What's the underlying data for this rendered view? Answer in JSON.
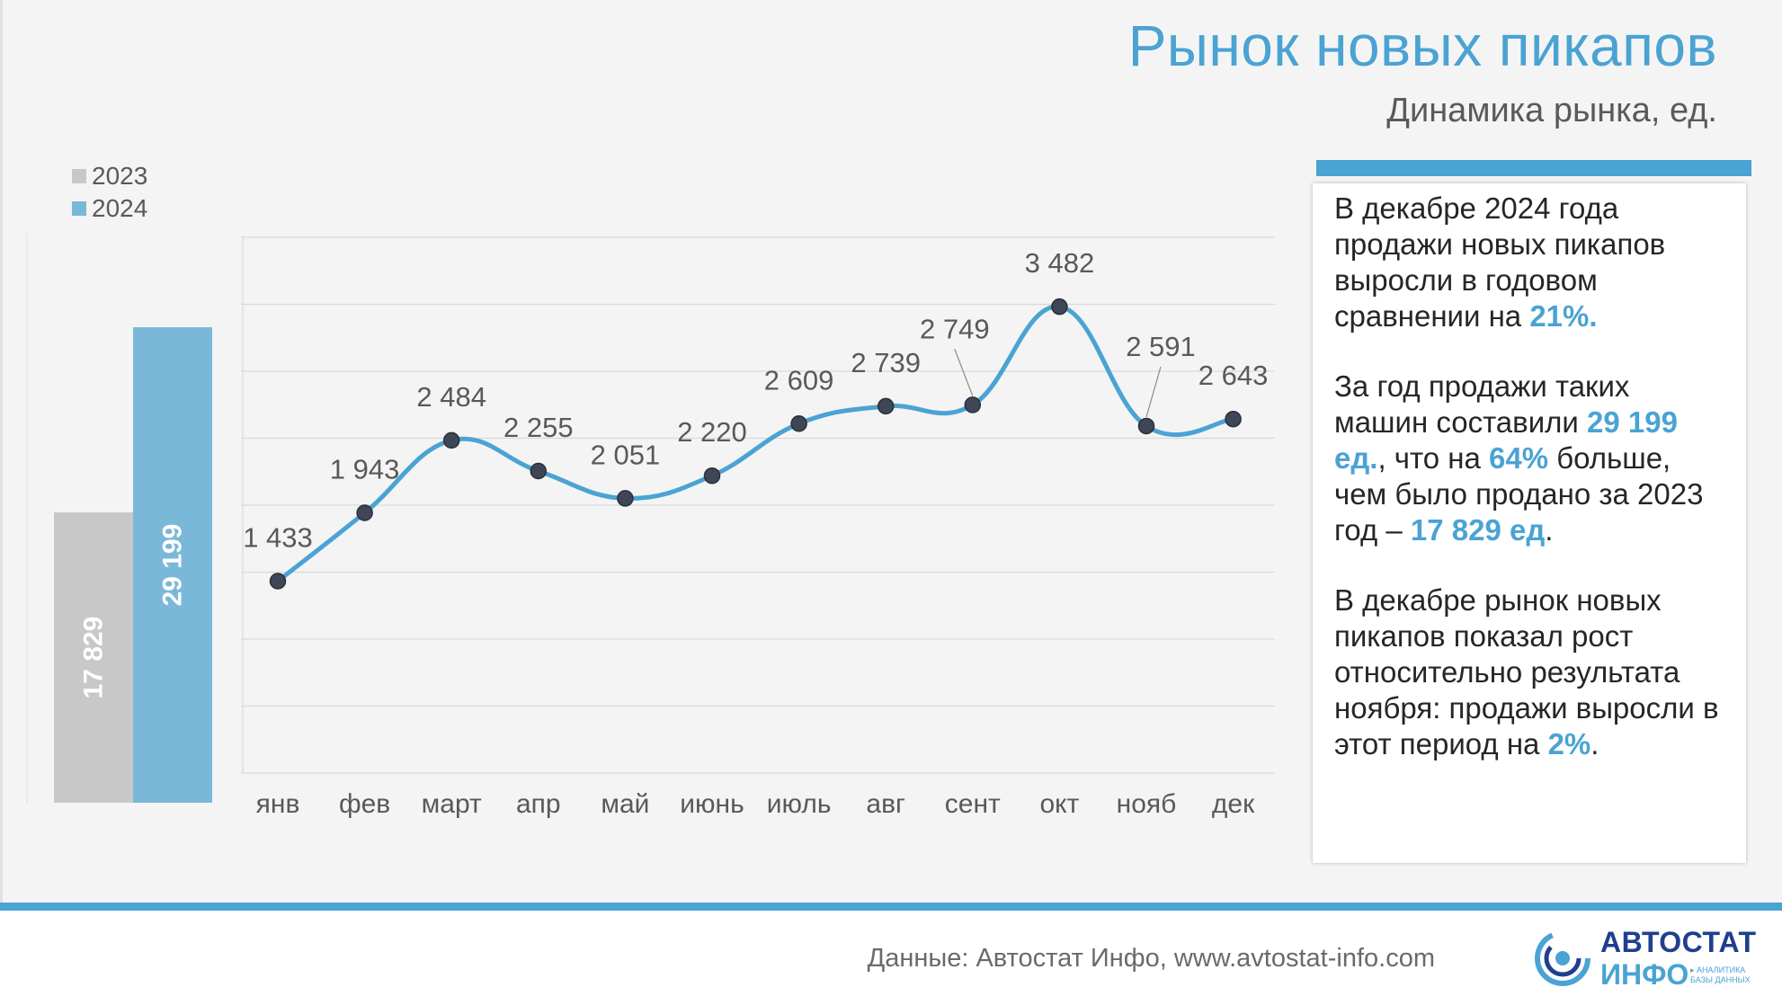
{
  "header": {
    "title": "Рынок новых пикапов",
    "subtitle": "Динамика рынка, ед."
  },
  "chart_data": [
    {
      "type": "bar",
      "categories": [
        "2023",
        "2024"
      ],
      "values": [
        17829,
        29199
      ],
      "value_labels": [
        "17 829",
        "29 199"
      ],
      "colors": [
        "#c8c8c8",
        "#7ab8d9"
      ],
      "legend": [
        "2023",
        "2024"
      ],
      "legend_position": "top-left"
    },
    {
      "type": "line",
      "categories": [
        "янв",
        "фев",
        "март",
        "апр",
        "май",
        "июнь",
        "июль",
        "авг",
        "сент",
        "окт",
        "нояб",
        "дек"
      ],
      "values": [
        1433,
        1943,
        2484,
        2255,
        2051,
        2220,
        2609,
        2739,
        2749,
        3482,
        2591,
        2643
      ],
      "value_labels": [
        "1 433",
        "1 943",
        "2 484",
        "2 255",
        "2 051",
        "2 220",
        "2 609",
        "2 739",
        "2 749",
        "3 482",
        "2 591",
        "2 643"
      ],
      "ylim": [
        0,
        4000
      ],
      "grid": true,
      "smooth": true,
      "line_color": "#4aa3d3",
      "marker_color": "#3f4656"
    }
  ],
  "infobox": {
    "p1": {
      "t1": "В декабре 2024 года продажи новых пикапов выросли в годовом сравнении на ",
      "h1": "21%",
      "t2": "."
    },
    "p2": {
      "t1": "За год продажи таких машин составили ",
      "h1": "29 199 ед.",
      "t2": ", что на ",
      "h2": "64%",
      "t3": " больше, чем было продано за 2023 год – ",
      "h3": "17 829 ед",
      "t4": "."
    },
    "p3": {
      "t1": "В декабре рынок новых пикапов показал рост относительно результата ноября: продажи выросли в этот период на ",
      "h1": "2%",
      "t2": "."
    }
  },
  "footer": {
    "source": "Данные: Автостат Инфо, www.avtostat-info.com",
    "logo_word1": "АВТОСТАТ",
    "logo_word2": "ИНФО",
    "logo_tag1": "▸ АНАЛИТИКА",
    "logo_tag2": "БАЗЫ ДАННЫХ"
  },
  "colors": {
    "accent": "#4aa3d3",
    "bar_2023": "#c8c8c8",
    "bar_2024": "#7ab8d9"
  }
}
